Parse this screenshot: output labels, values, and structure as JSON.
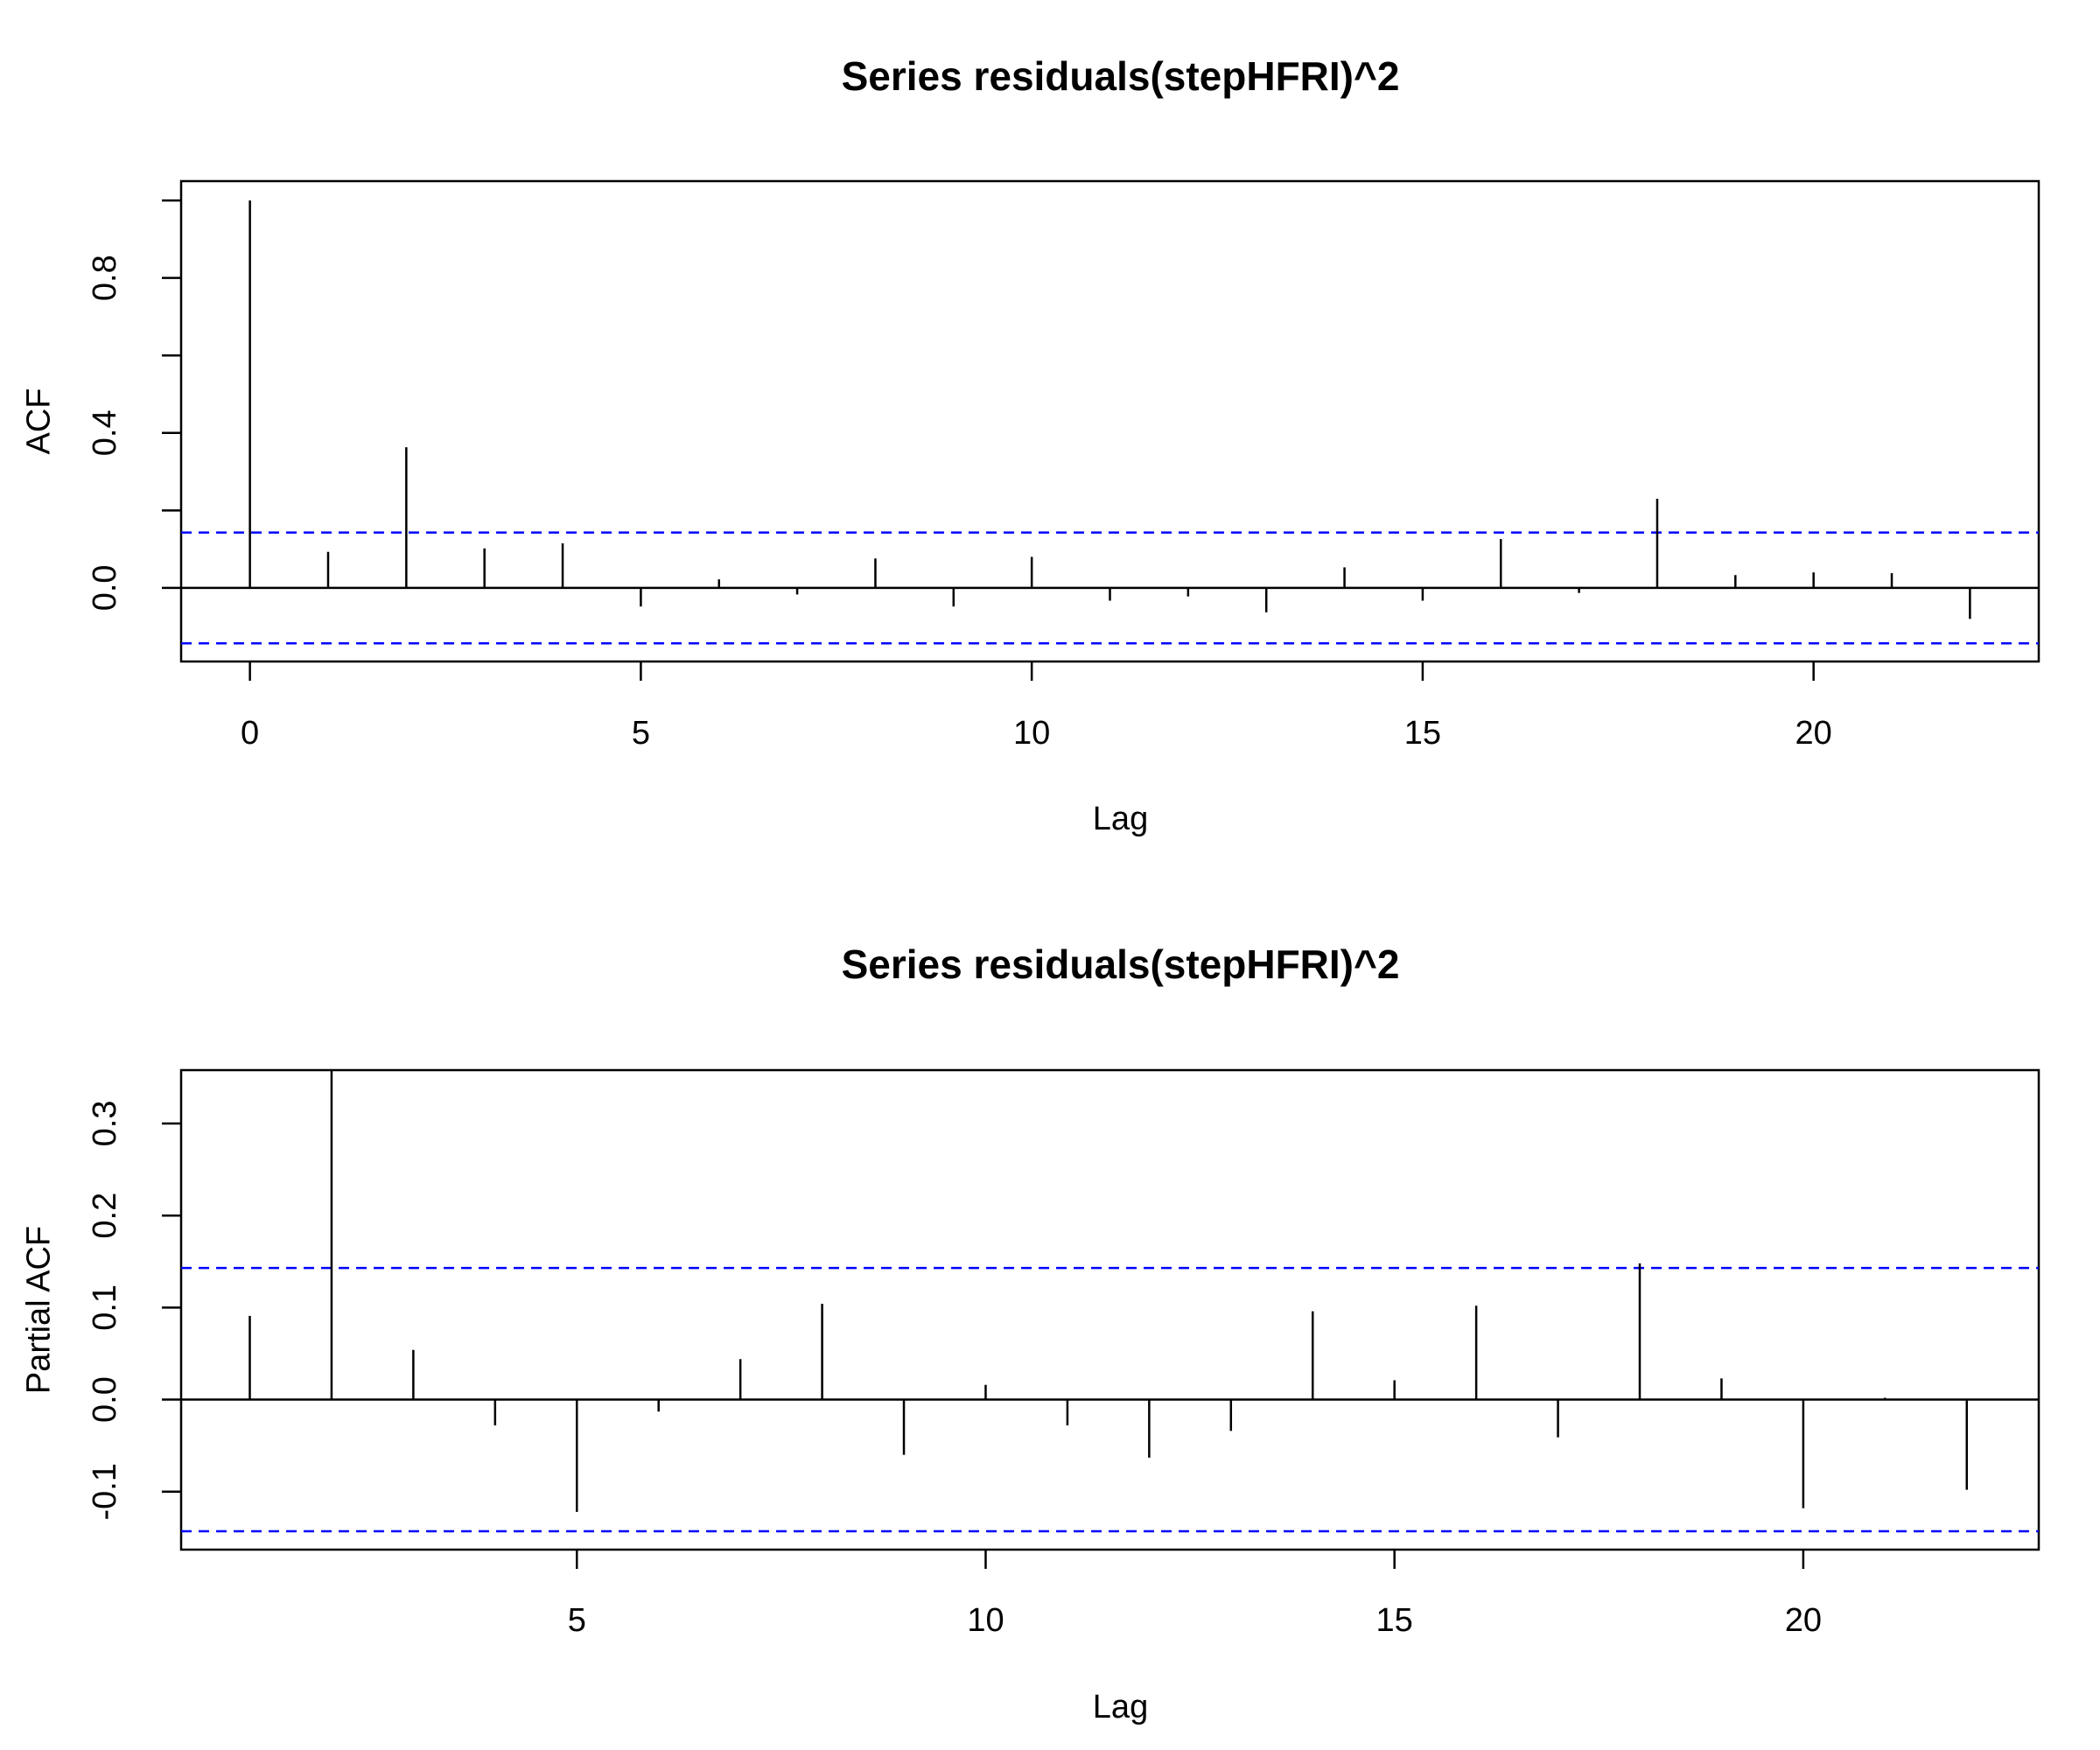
{
  "chart_data": [
    {
      "type": "bar",
      "title": "Series  residuals(stepHFRI)^2",
      "xlabel": "Lag",
      "ylabel": "ACF",
      "xlim": [
        -0.88,
        22.88
      ],
      "ylim": [
        -0.19,
        1.05
      ],
      "xticks": [
        0,
        5,
        10,
        15,
        20
      ],
      "xtick_labels": [
        "0",
        "5",
        "10",
        "15",
        "20"
      ],
      "yticks": [
        0.0,
        0.2,
        0.4,
        0.6,
        0.8,
        1.0
      ],
      "ytick_labels": [
        "0.0",
        "",
        "0.4",
        "",
        "0.8",
        ""
      ],
      "confidence_band": 0.143,
      "confidence_band_color": "#0000ff",
      "series": [
        {
          "x": [
            0,
            1,
            2,
            3,
            4,
            5,
            6,
            7,
            8,
            9,
            10,
            11,
            12,
            13,
            14,
            15,
            16,
            17,
            18,
            19,
            20,
            21,
            22
          ],
          "values": [
            1.0,
            0.093,
            0.363,
            0.102,
            0.115,
            -0.048,
            0.022,
            -0.017,
            0.076,
            -0.048,
            0.08,
            -0.033,
            -0.022,
            -0.063,
            0.053,
            -0.033,
            0.126,
            -0.013,
            0.23,
            0.033,
            0.04,
            0.038,
            -0.08
          ]
        }
      ]
    },
    {
      "type": "bar",
      "title": "Series  residuals(stepHFRI)^2",
      "xlabel": "Lag",
      "ylabel": "Partial ACF",
      "xlim": [
        0.16,
        22.88
      ],
      "ylim": [
        -0.163,
        0.358
      ],
      "xticks": [
        5,
        10,
        15,
        20
      ],
      "xtick_labels": [
        "5",
        "10",
        "15",
        "20"
      ],
      "yticks": [
        -0.1,
        0.0,
        0.1,
        0.2,
        0.3
      ],
      "ytick_labels": [
        "-0.1",
        "0.0",
        "0.1",
        "0.2",
        "0.3"
      ],
      "confidence_band": 0.143,
      "confidence_band_color": "#0000ff",
      "series": [
        {
          "x": [
            1,
            2,
            3,
            4,
            5,
            6,
            7,
            8,
            9,
            10,
            11,
            12,
            13,
            14,
            15,
            16,
            17,
            18,
            19,
            20,
            21,
            22
          ],
          "values": [
            0.091,
            0.357,
            0.054,
            -0.028,
            -0.122,
            -0.013,
            0.044,
            0.104,
            -0.06,
            0.016,
            -0.028,
            -0.063,
            -0.034,
            0.096,
            0.021,
            0.102,
            -0.041,
            0.148,
            0.023,
            -0.118,
            0.002,
            -0.098
          ]
        }
      ]
    }
  ]
}
